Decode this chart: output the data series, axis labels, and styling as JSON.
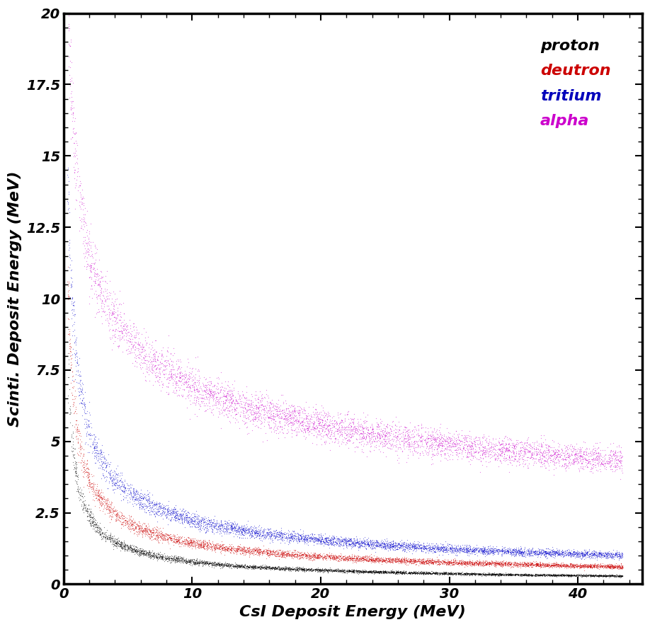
{
  "title": "",
  "xlabel": "CsI Deposit Energy (MeV)",
  "ylabel": "Scinti. Deposit Energy (MeV)",
  "xlim": [
    0,
    45
  ],
  "ylim": [
    0,
    20
  ],
  "xticks": [
    0,
    10,
    20,
    30,
    40
  ],
  "yticks": [
    0,
    2.5,
    5.0,
    7.5,
    10.0,
    12.5,
    15.0,
    17.5,
    20.0
  ],
  "colors": [
    "#000000",
    "#cc0000",
    "#0000cc",
    "#cc00cc"
  ],
  "legend_labels": [
    "proton",
    "deutron",
    "tritium",
    "alpha"
  ],
  "legend_colors": [
    "#000000",
    "#cc0000",
    "#0000bb",
    "#cc00cc"
  ],
  "background_color": "#ffffff",
  "label_fontsize": 16,
  "tick_fontsize": 14,
  "legend_fontsize": 16,
  "marker_size": 0.8,
  "alpha_scatter": 0.5,
  "curve_params": [
    {
      "A": 3.8,
      "b": 0.68,
      "scatter": 0.06,
      "n": 5000,
      "xmin": 0.3,
      "xmax": 43.5
    },
    {
      "A": 5.5,
      "b": 0.58,
      "scatter": 0.06,
      "n": 5000,
      "xmin": 0.3,
      "xmax": 43.5
    },
    {
      "A": 7.8,
      "b": 0.54,
      "scatter": 0.06,
      "n": 5000,
      "xmin": 0.3,
      "xmax": 43.5
    },
    {
      "A": 14.5,
      "b": 0.32,
      "scatter": 0.05,
      "n": 5000,
      "xmin": 0.3,
      "xmax": 43.5
    }
  ]
}
